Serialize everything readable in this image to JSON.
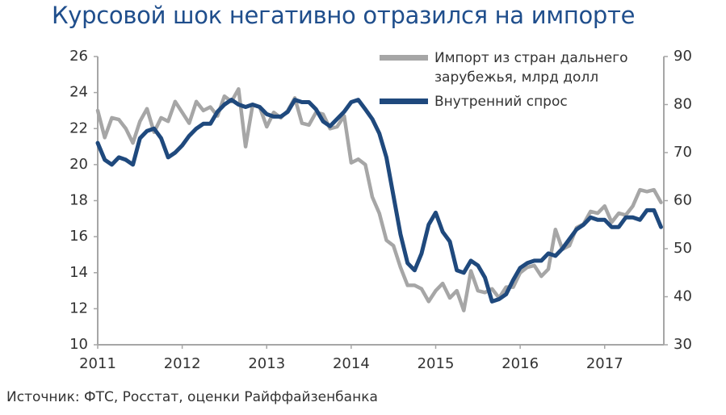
{
  "chart_data": {
    "type": "line",
    "title": "Курсовой шок негативно отразился на импорте",
    "source": "Источник: ФТС, Росстат, оценки Райффайзенбанка",
    "x": [
      2011.0,
      2011.083,
      2011.167,
      2011.25,
      2011.333,
      2011.417,
      2011.5,
      2011.583,
      2011.667,
      2011.75,
      2011.833,
      2011.917,
      2012.0,
      2012.083,
      2012.167,
      2012.25,
      2012.333,
      2012.417,
      2012.5,
      2012.583,
      2012.667,
      2012.75,
      2012.833,
      2012.917,
      2013.0,
      2013.083,
      2013.167,
      2013.25,
      2013.333,
      2013.417,
      2013.5,
      2013.583,
      2013.667,
      2013.75,
      2013.833,
      2013.917,
      2014.0,
      2014.083,
      2014.167,
      2014.25,
      2014.333,
      2014.417,
      2014.5,
      2014.583,
      2014.667,
      2014.75,
      2014.833,
      2014.917,
      2015.0,
      2015.083,
      2015.167,
      2015.25,
      2015.333,
      2015.417,
      2015.5,
      2015.583,
      2015.667,
      2015.75,
      2015.833,
      2015.917,
      2016.0,
      2016.083,
      2016.167,
      2016.25,
      2016.333,
      2016.417,
      2016.5,
      2016.583,
      2016.667,
      2016.75,
      2016.833,
      2016.917,
      2017.0,
      2017.083,
      2017.167,
      2017.25,
      2017.333,
      2017.417,
      2017.5,
      2017.583,
      2017.667
    ],
    "series": [
      {
        "name": "Импорт из стран дальнего зарубежья, млрд долл",
        "color": "#a6a6a6",
        "axis": "y",
        "values": [
          23.0,
          21.5,
          22.6,
          22.5,
          22.0,
          21.2,
          22.4,
          23.1,
          21.8,
          22.6,
          22.4,
          23.5,
          22.9,
          22.3,
          23.5,
          23.0,
          23.2,
          22.7,
          23.8,
          23.5,
          24.2,
          21.0,
          23.3,
          23.2,
          22.1,
          22.9,
          22.6,
          23.0,
          23.7,
          22.3,
          22.2,
          22.9,
          22.8,
          22.0,
          22.1,
          22.7,
          20.1,
          20.3,
          20.0,
          18.2,
          17.3,
          15.8,
          15.5,
          14.3,
          13.3,
          13.3,
          13.1,
          12.4,
          13.0,
          13.4,
          12.6,
          13.0,
          11.9,
          14.1,
          13.0,
          12.9,
          13.1,
          12.6,
          13.2,
          13.2,
          14.0,
          14.3,
          14.4,
          13.8,
          14.2,
          16.4,
          15.3,
          15.5,
          16.5,
          16.7,
          17.4,
          17.3,
          17.7,
          16.8,
          17.3,
          17.2,
          17.7,
          18.6,
          18.5,
          18.6,
          17.9
        ]
      },
      {
        "name": "Внутренний спрос",
        "color": "#1f497d",
        "axis": "y2",
        "values": [
          72,
          68.5,
          67.5,
          69,
          68.5,
          67.5,
          73,
          74.5,
          75,
          73,
          69,
          70,
          71.5,
          73.5,
          75,
          76,
          76,
          78.5,
          80,
          81,
          80,
          79.5,
          80,
          79.5,
          78,
          77.5,
          77.5,
          78.5,
          81,
          80.5,
          80.5,
          79,
          76.5,
          75.5,
          77,
          78.5,
          80.5,
          81,
          79,
          77,
          74,
          69,
          61,
          53,
          47,
          45.5,
          49,
          55,
          57.5,
          53.5,
          51.5,
          45.5,
          45,
          47.5,
          46.5,
          44,
          39,
          39.5,
          40.5,
          43.5,
          46,
          47,
          47.5,
          47.5,
          49,
          48.5,
          50,
          52,
          54,
          55,
          56.5,
          56,
          56,
          54.5,
          54.5,
          56.5,
          56.5,
          56,
          58,
          58,
          54.5
        ]
      }
    ],
    "xlim": [
      2011,
      2017.7
    ],
    "xticks": [
      2011,
      2012,
      2013,
      2014,
      2015,
      2016,
      2017
    ],
    "ylim": [
      10,
      26
    ],
    "yticks": [
      10,
      12,
      14,
      16,
      18,
      20,
      22,
      24,
      26
    ],
    "y2lim": [
      30,
      90
    ],
    "y2ticks": [
      30,
      40,
      50,
      60,
      70,
      80,
      90
    ],
    "grid": false,
    "legend": "upper right"
  }
}
